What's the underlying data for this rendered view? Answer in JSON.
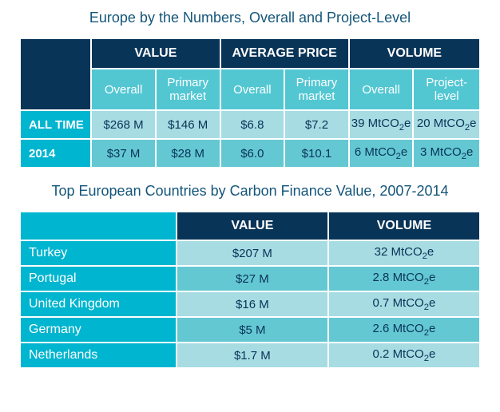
{
  "colors": {
    "title": "#14567a",
    "navy_bg": "#083457",
    "white": "#ffffff",
    "teal": "#00b5cf",
    "teal_hdr_sub": "#52c7d2",
    "row_light": "#a7dce3",
    "row_mid": "#64c8d3",
    "data_text": "#083457"
  },
  "table1": {
    "title": "Europe by the Numbers, Overall and Project-Level",
    "groups": [
      "VALUE",
      "AVERAGE PRICE",
      "VOLUME"
    ],
    "subs": [
      "Overall",
      "Primary market",
      "Overall",
      "Primary market",
      "Overall",
      "Project-level"
    ],
    "rows": [
      {
        "label": "ALL TIME",
        "cells": [
          "$268 M",
          "$146 M",
          "$6.8",
          "$7.2",
          "39 MtCO₂e",
          "20 MtCO₂e"
        ]
      },
      {
        "label": "2014",
        "cells": [
          "$37 M",
          "$28 M",
          "$6.0",
          "$10.1",
          "6 MtCO₂e",
          "3 MtCO₂e"
        ]
      }
    ]
  },
  "table2": {
    "title": "Top European Countries by Carbon Finance Value, 2007-2014",
    "headers": [
      "VALUE",
      "VOLUME"
    ],
    "rows": [
      {
        "label": "Turkey",
        "cells": [
          "$207 M",
          "32 MtCO₂e"
        ]
      },
      {
        "label": "Portugal",
        "cells": [
          "$27 M",
          "2.8 MtCO₂e"
        ]
      },
      {
        "label": "United Kingdom",
        "cells": [
          "$16 M",
          "0.7 MtCO₂e"
        ]
      },
      {
        "label": "Germany",
        "cells": [
          "$5 M",
          "2.6 MtCO₂e"
        ]
      },
      {
        "label": "Netherlands",
        "cells": [
          "$1.7 M",
          "0.2 MtCO₂e"
        ]
      }
    ]
  }
}
